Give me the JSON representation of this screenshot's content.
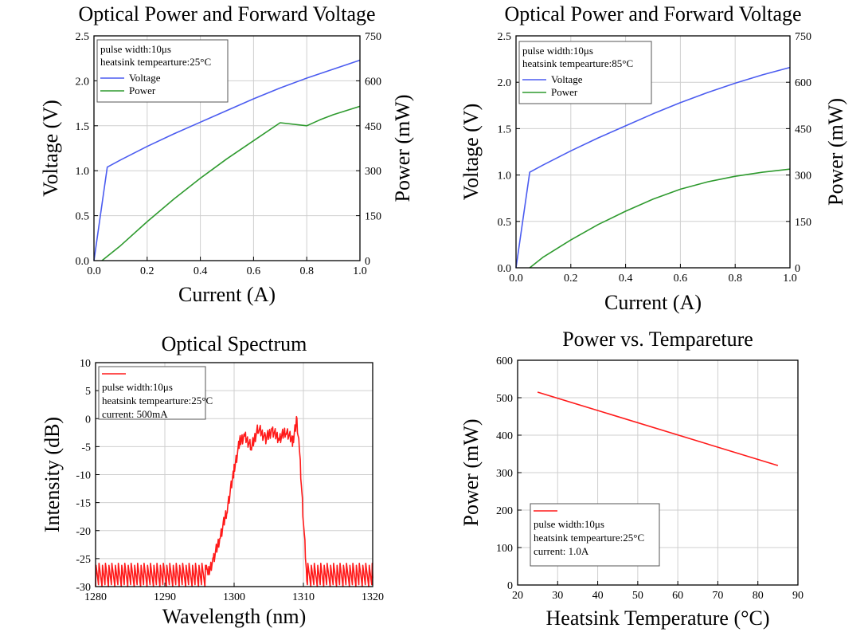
{
  "chart_data": [
    {
      "type": "line",
      "title": "Optical Power and Forward Voltage",
      "xlabel": "Current (A)",
      "ylabel": "Voltage (V)",
      "y2label": "Power (mW)",
      "xlim": [
        0,
        1.0
      ],
      "ylim": [
        0,
        2.5
      ],
      "y2lim": [
        0,
        750
      ],
      "xticks": [
        "0.0",
        "0.2",
        "0.4",
        "0.6",
        "0.8",
        "1.0"
      ],
      "yticks": [
        "0.0",
        "0.5",
        "1.0",
        "1.5",
        "2.0",
        "2.5"
      ],
      "y2ticks": [
        "0",
        "150",
        "300",
        "450",
        "600",
        "750"
      ],
      "grid": true,
      "legend_position": "top-left",
      "legend_notes": [
        "pulse width:10μs",
        "heatsink tempearture:25°C"
      ],
      "series": [
        {
          "name": "Voltage",
          "axis": "left",
          "color": "#4b5cf0",
          "x": [
            0,
            0.05,
            0.1,
            0.2,
            0.3,
            0.4,
            0.5,
            0.6,
            0.7,
            0.8,
            0.9,
            1.0
          ],
          "y": [
            0,
            1.04,
            1.12,
            1.27,
            1.41,
            1.54,
            1.67,
            1.8,
            1.92,
            2.03,
            2.13,
            2.23
          ]
        },
        {
          "name": "Power",
          "axis": "right",
          "color": "#2e9a2e",
          "x": [
            0.03,
            0.1,
            0.2,
            0.3,
            0.4,
            0.5,
            0.6,
            0.7,
            0.8,
            0.85,
            0.9,
            1.0
          ],
          "y": [
            0,
            50,
            130,
            205,
            275,
            340,
            400,
            460,
            450,
            470,
            487,
            515
          ]
        }
      ]
    },
    {
      "type": "line",
      "title": "Optical Power and Forward Voltage",
      "xlabel": "Current (A)",
      "ylabel": "Voltage (V)",
      "y2label": "Power (mW)",
      "xlim": [
        0,
        1.0
      ],
      "ylim": [
        0,
        2.5
      ],
      "y2lim": [
        0,
        750
      ],
      "xticks": [
        "0.0",
        "0.2",
        "0.4",
        "0.6",
        "0.8",
        "1.0"
      ],
      "yticks": [
        "0.0",
        "0.5",
        "1.0",
        "1.5",
        "2.0",
        "2.5"
      ],
      "y2ticks": [
        "0",
        "150",
        "300",
        "450",
        "600",
        "750"
      ],
      "grid": true,
      "legend_position": "top-left",
      "legend_notes": [
        "pulse width:10μs",
        "heatsink tempearture:85°C"
      ],
      "series": [
        {
          "name": "Voltage",
          "axis": "left",
          "color": "#4b5cf0",
          "x": [
            0,
            0.05,
            0.1,
            0.2,
            0.3,
            0.4,
            0.5,
            0.6,
            0.7,
            0.8,
            0.9,
            1.0
          ],
          "y": [
            0,
            1.03,
            1.11,
            1.26,
            1.4,
            1.53,
            1.66,
            1.78,
            1.89,
            1.99,
            2.08,
            2.16
          ]
        },
        {
          "name": "Power",
          "axis": "right",
          "color": "#2e9a2e",
          "x": [
            0.05,
            0.1,
            0.2,
            0.3,
            0.4,
            0.5,
            0.6,
            0.7,
            0.8,
            0.9,
            1.0
          ],
          "y": [
            0,
            35,
            90,
            140,
            183,
            222,
            254,
            278,
            296,
            309,
            319
          ]
        }
      ]
    },
    {
      "type": "line",
      "title": "Optical Spectrum",
      "xlabel": "Wavelength (nm)",
      "ylabel": "Intensity (dB)",
      "xlim": [
        1280,
        1320
      ],
      "ylim": [
        -30,
        10
      ],
      "xticks": [
        "1280",
        "1290",
        "1300",
        "1310",
        "1320"
      ],
      "yticks": [
        "10",
        "5",
        "0",
        "-5",
        "-10",
        "-15",
        "-20",
        "-25",
        "-30"
      ],
      "grid": true,
      "legend_position": "top-left",
      "legend_notes": [
        "pulse width:10μs",
        "heatsink tempearture:25°C",
        "current: 500mA"
      ],
      "series": [
        {
          "color": "#ff1a1a",
          "x": [
            1280,
            1296,
            1297,
            1298,
            1299,
            1300,
            1300.8,
            1301.5,
            1302.5,
            1303.5,
            1304.5,
            1305.5,
            1306.5,
            1307.5,
            1308.5,
            1309,
            1309.4,
            1310,
            1310.5,
            1320
          ],
          "y": [
            -28.5,
            -28.5,
            -25,
            -21,
            -16,
            -9,
            -4,
            -3,
            -5,
            -1.5,
            -3.5,
            -2,
            -3.5,
            -2,
            -4,
            0,
            -5,
            -18,
            -28.5,
            -28.5
          ]
        }
      ]
    },
    {
      "type": "line",
      "title": "Power vs. Tempareture",
      "xlabel": "Heatsink Temperature (°C)",
      "ylabel": "Power (mW)",
      "xlim": [
        20,
        90
      ],
      "ylim": [
        0,
        600
      ],
      "xticks": [
        "20",
        "30",
        "40",
        "50",
        "60",
        "70",
        "80",
        "90"
      ],
      "yticks": [
        "0",
        "100",
        "200",
        "300",
        "400",
        "500",
        "600"
      ],
      "grid": true,
      "legend_position": "bottom-left",
      "legend_notes": [
        "pulse width:10μs",
        "heatsink tempearture:25°C",
        "current: 1.0A"
      ],
      "series": [
        {
          "color": "#ff1a1a",
          "x": [
            25,
            85
          ],
          "y": [
            515,
            319
          ]
        }
      ]
    }
  ]
}
